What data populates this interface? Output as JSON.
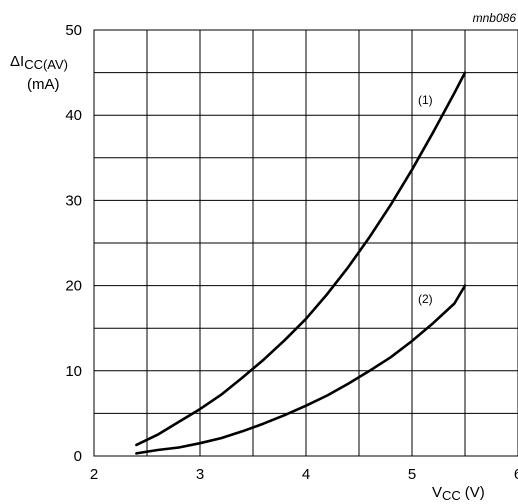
{
  "chart_data": {
    "type": "line",
    "code": "mnb086",
    "ylabel": {
      "main": "ΔI",
      "sub": "CC(AV)",
      "unit": "(mA)"
    },
    "xlabel": {
      "main": "V",
      "sub": "CC",
      "unit": "(V)"
    },
    "xlim": [
      2,
      6
    ],
    "ylim": [
      0,
      50
    ],
    "x_ticks": [
      2,
      3,
      4,
      5,
      6
    ],
    "y_ticks": [
      0,
      10,
      20,
      30,
      40,
      50
    ],
    "grid": true,
    "series": [
      {
        "name": "(1)",
        "x": [
          2.4,
          2.6,
          2.8,
          3.0,
          3.2,
          3.4,
          3.6,
          3.8,
          4.0,
          4.2,
          4.4,
          4.6,
          4.8,
          5.0,
          5.2,
          5.4,
          5.5
        ],
        "y": [
          1.3,
          2.5,
          4.0,
          5.5,
          7.2,
          9.2,
          11.3,
          13.6,
          16.1,
          19.0,
          22.2,
          25.7,
          29.5,
          33.6,
          38.0,
          42.6,
          45.0
        ]
      },
      {
        "name": "(2)",
        "x": [
          2.4,
          2.6,
          2.8,
          3.0,
          3.2,
          3.4,
          3.6,
          3.8,
          4.0,
          4.2,
          4.4,
          4.6,
          4.8,
          5.0,
          5.2,
          5.4,
          5.5
        ],
        "y": [
          0.3,
          0.7,
          1.0,
          1.5,
          2.1,
          2.9,
          3.8,
          4.8,
          5.9,
          7.1,
          8.5,
          10.0,
          11.6,
          13.5,
          15.6,
          17.9,
          20.0
        ]
      }
    ]
  }
}
